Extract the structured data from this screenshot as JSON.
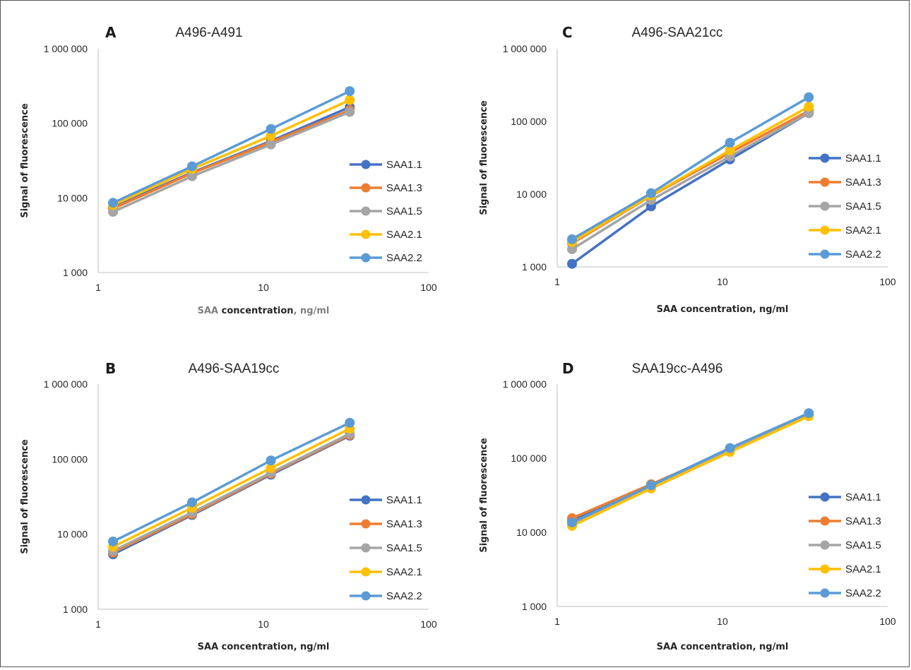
{
  "figure": {
    "panel_count": 4
  },
  "chart_data": [
    {
      "panel": "A",
      "title": "A496-A491",
      "type": "line",
      "xscale": "log",
      "yscale": "log",
      "xlim": [
        1,
        100
      ],
      "ylim": [
        1000,
        1000000
      ],
      "xticks": [
        "1",
        "10",
        "100"
      ],
      "yticks": [
        "1 000",
        "10 000",
        "100 000",
        "1 000 000"
      ],
      "xlabel": "SAA concentration, ng/ml",
      "xlabel_parts": [
        {
          "text": "SAA ",
          "color": "#7f7f7f"
        },
        {
          "text": "concentration",
          "color": "#262626"
        },
        {
          "text": ", ng/ml",
          "color": "#7f7f7f"
        }
      ],
      "ylabel": "Signal of fluorescence",
      "legend_position": "right",
      "x": [
        1.23,
        3.7,
        11.1,
        33.3
      ],
      "series": [
        {
          "name": "SAA1.1",
          "color": "#4472c4",
          "values": [
            7500,
            22000,
            58000,
            165000
          ]
        },
        {
          "name": "SAA1.3",
          "color": "#ed7d31",
          "values": [
            7200,
            21500,
            56000,
            150000
          ]
        },
        {
          "name": "SAA1.5",
          "color": "#a5a5a5",
          "values": [
            6500,
            19500,
            52000,
            142000
          ]
        },
        {
          "name": "SAA2.1",
          "color": "#ffc000",
          "values": [
            8000,
            24500,
            68000,
            205000
          ]
        },
        {
          "name": "SAA2.2",
          "color": "#5b9bd5",
          "values": [
            8600,
            26500,
            84000,
            270000
          ]
        }
      ]
    },
    {
      "panel": "B",
      "title": "A496-SAA19cc",
      "type": "line",
      "xscale": "log",
      "yscale": "log",
      "xlim": [
        1,
        100
      ],
      "ylim": [
        1000,
        1000000
      ],
      "xticks": [
        "1",
        "10",
        "100"
      ],
      "yticks": [
        "1 000",
        "10 000",
        "100 000",
        "1 000 000"
      ],
      "xlabel": "SAA concentration, ng/ml",
      "ylabel": "Signal of fluorescence",
      "legend_position": "right",
      "x": [
        1.23,
        3.7,
        11.1,
        33.3
      ],
      "series": [
        {
          "name": "SAA1.1",
          "color": "#4472c4",
          "values": [
            5400,
            18000,
            62000,
            205000
          ]
        },
        {
          "name": "SAA1.3",
          "color": "#ed7d31",
          "values": [
            5700,
            18500,
            64000,
            210000
          ]
        },
        {
          "name": "SAA1.5",
          "color": "#a5a5a5",
          "values": [
            6000,
            19500,
            66000,
            218000
          ]
        },
        {
          "name": "SAA2.1",
          "color": "#ffc000",
          "values": [
            6800,
            22500,
            76000,
            255000
          ]
        },
        {
          "name": "SAA2.2",
          "color": "#5b9bd5",
          "values": [
            8000,
            26500,
            96000,
            305000
          ]
        }
      ]
    },
    {
      "panel": "C",
      "title": "A496-SAA21cc",
      "type": "line",
      "xscale": "log",
      "yscale": "log",
      "xlim": [
        1,
        100
      ],
      "ylim": [
        1000,
        1000000
      ],
      "xticks": [
        "1",
        "10",
        "100"
      ],
      "yticks": [
        "1 000",
        "10 000",
        "100 000",
        "1 000 000"
      ],
      "xlabel": "SAA concentration, ng/ml",
      "ylabel": "Signal of fluorescence",
      "legend_position": "right",
      "x": [
        1.23,
        3.7,
        11.1,
        33.3
      ],
      "series": [
        {
          "name": "SAA1.1",
          "color": "#4472c4",
          "values": [
            1100,
            6800,
            30000,
            130000
          ]
        },
        {
          "name": "SAA1.3",
          "color": "#ed7d31",
          "values": [
            2100,
            9500,
            37000,
            140000
          ]
        },
        {
          "name": "SAA1.5",
          "color": "#a5a5a5",
          "values": [
            1750,
            8300,
            33000,
            130000
          ]
        },
        {
          "name": "SAA2.1",
          "color": "#ffc000",
          "values": [
            2200,
            9600,
            40000,
            160000
          ]
        },
        {
          "name": "SAA2.2",
          "color": "#5b9bd5",
          "values": [
            2400,
            10300,
            51000,
            215000
          ]
        }
      ]
    },
    {
      "panel": "D",
      "title": "SAA19cc-A496",
      "type": "line",
      "xscale": "log",
      "yscale": "log",
      "xlim": [
        1,
        100
      ],
      "ylim": [
        1000,
        1000000
      ],
      "xticks": [
        "1",
        "10",
        "100"
      ],
      "yticks": [
        "1 000",
        "10 000",
        "100 000",
        "1 000 000"
      ],
      "xlabel": "SAA concentration, ng/ml",
      "ylabel": "Signal of fluorescence",
      "legend_position": "right",
      "x": [
        1.23,
        3.7,
        11.1,
        33.3
      ],
      "series": [
        {
          "name": "SAA1.1",
          "color": "#4472c4",
          "values": [
            14500,
            44000,
            132000,
            385000
          ]
        },
        {
          "name": "SAA1.3",
          "color": "#ed7d31",
          "values": [
            15500,
            44500,
            128000,
            375000
          ]
        },
        {
          "name": "SAA1.5",
          "color": "#a5a5a5",
          "values": [
            13000,
            41000,
            126000,
            372000
          ]
        },
        {
          "name": "SAA2.1",
          "color": "#ffc000",
          "values": [
            12200,
            39000,
            121000,
            368000
          ]
        },
        {
          "name": "SAA2.2",
          "color": "#5b9bd5",
          "values": [
            13600,
            43000,
            137000,
            405000
          ]
        }
      ]
    }
  ]
}
